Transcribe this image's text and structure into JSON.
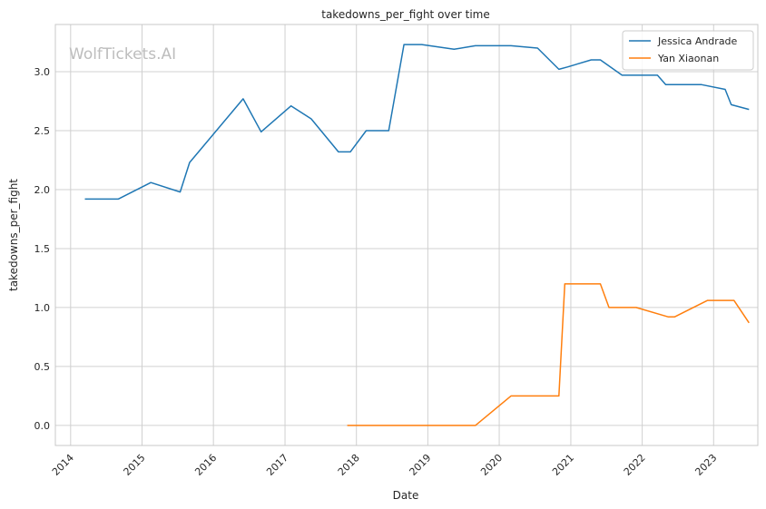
{
  "watermark": "WolfTickets.AI",
  "chart_data": {
    "type": "line",
    "title": "takedowns_per_fight over time",
    "xlabel": "Date",
    "ylabel": "takedowns_per_fight",
    "xlim": [
      "2013-10-15",
      "2023-08-15"
    ],
    "ylim": [
      -0.17,
      3.4
    ],
    "x_ticks": [
      "2014",
      "2015",
      "2016",
      "2017",
      "2018",
      "2019",
      "2020",
      "2021",
      "2022",
      "2023"
    ],
    "y_ticks": [
      "0.0",
      "0.5",
      "1.0",
      "1.5",
      "2.0",
      "2.5",
      "3.0"
    ],
    "grid": true,
    "legend_position": "top-right",
    "series": [
      {
        "name": "Jessica Andrade",
        "color": "#1f77b4",
        "points": [
          [
            "2014-03-15",
            1.92
          ],
          [
            "2014-09-01",
            1.92
          ],
          [
            "2015-02-15",
            2.06
          ],
          [
            "2015-07-15",
            1.98
          ],
          [
            "2015-09-01",
            2.23
          ],
          [
            "2016-06-01",
            2.77
          ],
          [
            "2016-09-01",
            2.49
          ],
          [
            "2017-02-01",
            2.71
          ],
          [
            "2017-05-15",
            2.6
          ],
          [
            "2017-10-01",
            2.32
          ],
          [
            "2017-12-01",
            2.32
          ],
          [
            "2018-02-20",
            2.5
          ],
          [
            "2018-06-15",
            2.5
          ],
          [
            "2018-09-01",
            3.23
          ],
          [
            "2018-12-01",
            3.23
          ],
          [
            "2019-05-15",
            3.19
          ],
          [
            "2019-09-01",
            3.22
          ],
          [
            "2020-03-01",
            3.22
          ],
          [
            "2020-07-15",
            3.2
          ],
          [
            "2020-11-01",
            3.02
          ],
          [
            "2020-12-15",
            3.04
          ],
          [
            "2021-04-15",
            3.1
          ],
          [
            "2021-06-01",
            3.1
          ],
          [
            "2021-09-20",
            2.97
          ],
          [
            "2022-01-01",
            2.97
          ],
          [
            "2022-03-20",
            2.97
          ],
          [
            "2022-05-01",
            2.89
          ],
          [
            "2022-11-01",
            2.89
          ],
          [
            "2023-03-01",
            2.85
          ],
          [
            "2023-04-01",
            2.72
          ],
          [
            "2023-07-01",
            2.68
          ]
        ]
      },
      {
        "name": "Yan Xiaonan",
        "color": "#ff7f0e",
        "points": [
          [
            "2017-11-15",
            0.0
          ],
          [
            "2019-09-01",
            0.0
          ],
          [
            "2020-03-01",
            0.25
          ],
          [
            "2020-11-01",
            0.25
          ],
          [
            "2020-12-01",
            1.2
          ],
          [
            "2021-06-01",
            1.2
          ],
          [
            "2021-07-15",
            1.0
          ],
          [
            "2021-12-01",
            1.0
          ],
          [
            "2022-05-15",
            0.92
          ],
          [
            "2022-06-15",
            0.92
          ],
          [
            "2022-12-01",
            1.06
          ],
          [
            "2023-04-15",
            1.06
          ],
          [
            "2023-07-01",
            0.87
          ]
        ]
      }
    ]
  }
}
